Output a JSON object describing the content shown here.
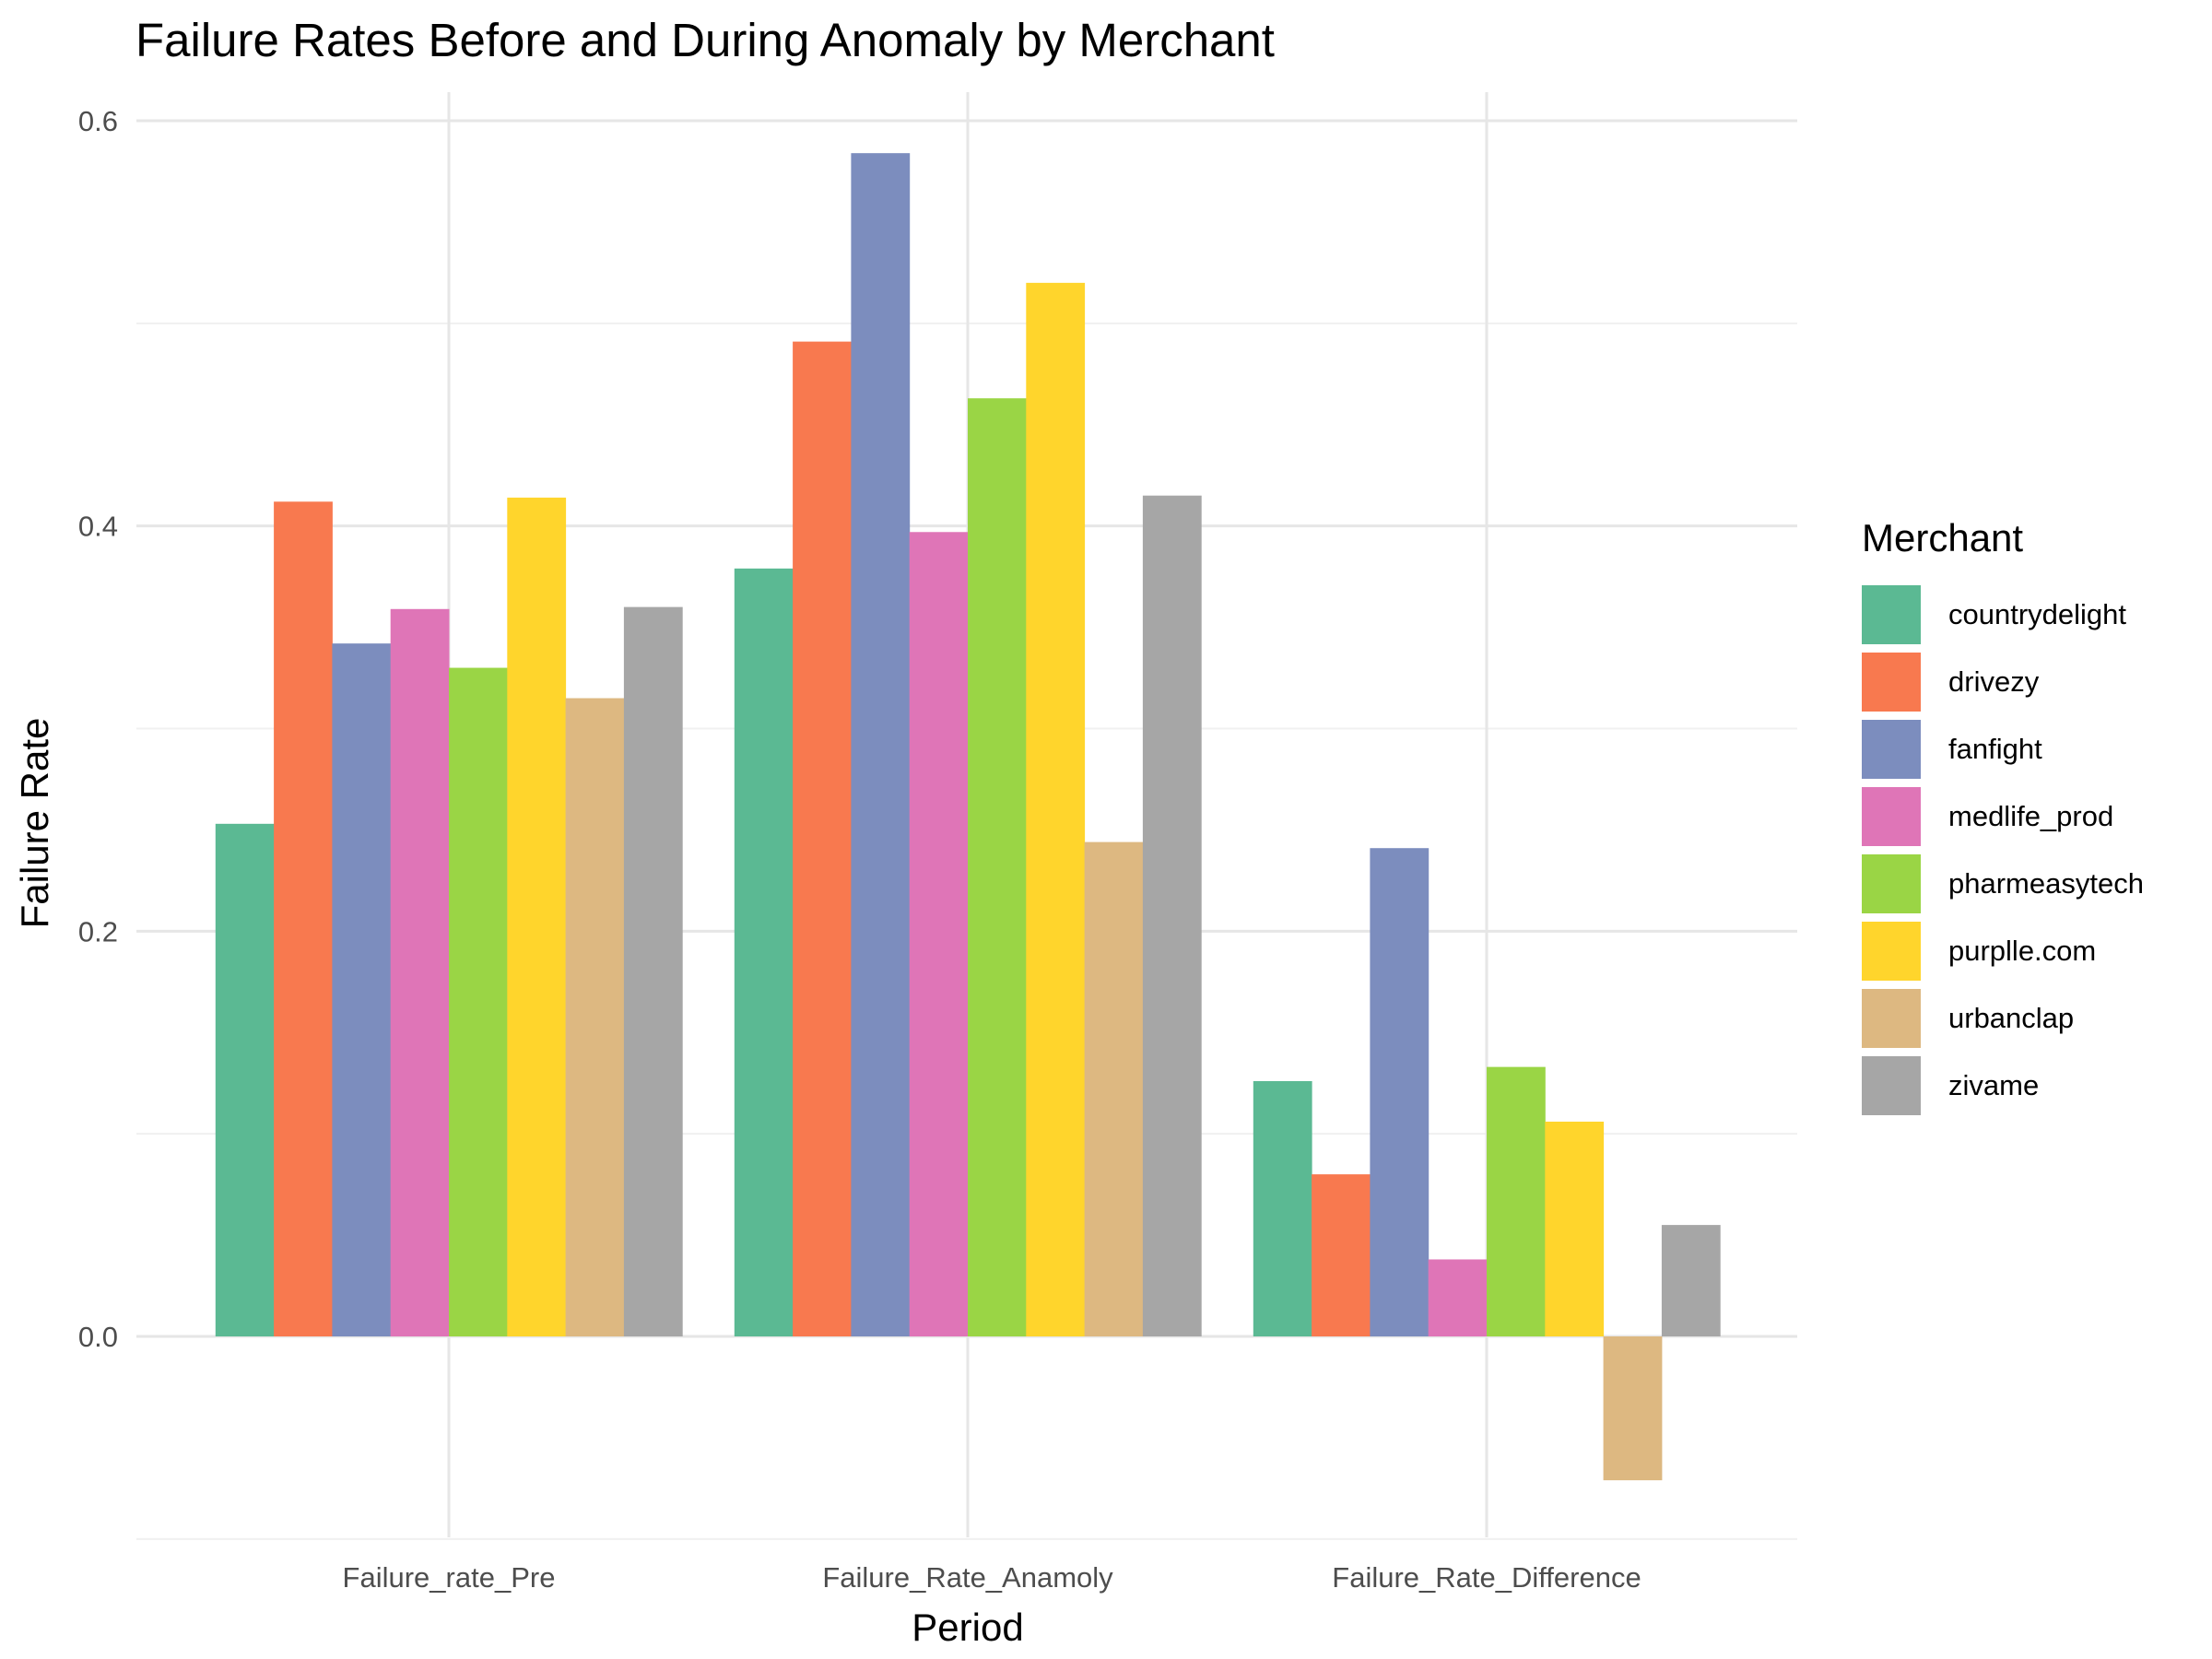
{
  "chart_data": {
    "type": "bar",
    "title": "Failure Rates Before and During Anomaly by Merchant",
    "xlabel": "Period",
    "ylabel": "Failure Rate",
    "ylim": [
      -0.1,
      0.6
    ],
    "yticks": [
      0.0,
      0.2,
      0.4,
      0.6
    ],
    "ytick_labels": [
      "0.0",
      "0.2",
      "0.4",
      "0.6"
    ],
    "grid": true,
    "legend_title": "Merchant",
    "legend_position": "right",
    "categories": [
      "Failure_rate_Pre",
      "Failure_Rate_Anamoly",
      "Failure_Rate_Difference"
    ],
    "series": [
      {
        "name": "countrydelight",
        "color": "#5BB993",
        "values": [
          0.253,
          0.379,
          0.126
        ]
      },
      {
        "name": "drivezy",
        "color": "#F8794F",
        "values": [
          0.412,
          0.491,
          0.08
        ]
      },
      {
        "name": "fanfight",
        "color": "#7C8DBE",
        "values": [
          0.342,
          0.584,
          0.241
        ]
      },
      {
        "name": "medlife_prod",
        "color": "#DF75B7",
        "values": [
          0.359,
          0.397,
          0.038
        ]
      },
      {
        "name": "pharmeasytech",
        "color": "#9AD545",
        "values": [
          0.33,
          0.463,
          0.133
        ]
      },
      {
        "name": "purplle.com",
        "color": "#FFD52C",
        "values": [
          0.414,
          0.52,
          0.106
        ]
      },
      {
        "name": "urbanclap",
        "color": "#DDB881",
        "values": [
          0.315,
          0.244,
          -0.071
        ]
      },
      {
        "name": "zivame",
        "color": "#A6A6A6",
        "values": [
          0.36,
          0.415,
          0.055
        ]
      }
    ]
  }
}
